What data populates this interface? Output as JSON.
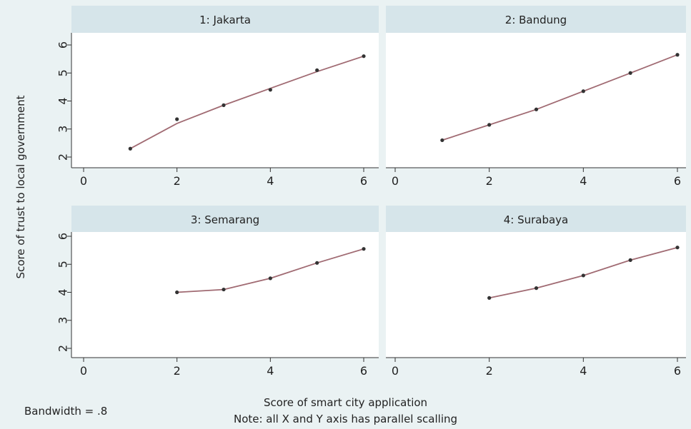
{
  "chart_data": {
    "type": "line",
    "ylabel": "Score of trust to local government",
    "xlabel": "Score of smart city application",
    "note": "Note: all X and Y axis has parallel scalling",
    "bandwidth_label": "Bandwidth = .8",
    "xlim": [
      0,
      6
    ],
    "ylim": [
      1.7,
      6.3
    ],
    "xticks": [
      0,
      2,
      4,
      6
    ],
    "yticks": [
      2,
      3,
      4,
      5,
      6
    ],
    "colors": {
      "line": "#a06a72",
      "point": "#333333",
      "header": "#d6e5ea",
      "panel": "#ffffff",
      "background": "#eaf2f3"
    },
    "panels": [
      {
        "title": "1: Jakarta",
        "points": [
          [
            1,
            2.3
          ],
          [
            2,
            3.35
          ],
          [
            3,
            3.85
          ],
          [
            4,
            4.4
          ],
          [
            5,
            5.1
          ],
          [
            6,
            5.6
          ]
        ],
        "line": [
          [
            1,
            2.3
          ],
          [
            2,
            3.2
          ],
          [
            3,
            3.85
          ],
          [
            4,
            4.45
          ],
          [
            5,
            5.05
          ],
          [
            6,
            5.6
          ]
        ]
      },
      {
        "title": "2: Bandung",
        "points": [
          [
            1,
            2.6
          ],
          [
            2,
            3.15
          ],
          [
            3,
            3.7
          ],
          [
            4,
            4.35
          ],
          [
            5,
            5.0
          ],
          [
            6,
            5.65
          ]
        ],
        "line": [
          [
            1,
            2.6
          ],
          [
            2,
            3.15
          ],
          [
            3,
            3.7
          ],
          [
            4,
            4.35
          ],
          [
            5,
            5.0
          ],
          [
            6,
            5.65
          ]
        ]
      },
      {
        "title": "3: Semarang",
        "points": [
          [
            2,
            4.0
          ],
          [
            3,
            4.1
          ],
          [
            4,
            4.5
          ],
          [
            5,
            5.05
          ],
          [
            6,
            5.55
          ]
        ],
        "line": [
          [
            2,
            4.0
          ],
          [
            3,
            4.1
          ],
          [
            4,
            4.5
          ],
          [
            5,
            5.05
          ],
          [
            6,
            5.55
          ]
        ]
      },
      {
        "title": "4: Surabaya",
        "points": [
          [
            2,
            3.8
          ],
          [
            3,
            4.15
          ],
          [
            4,
            4.6
          ],
          [
            5,
            5.15
          ],
          [
            6,
            5.6
          ]
        ],
        "line": [
          [
            2,
            3.8
          ],
          [
            3,
            4.15
          ],
          [
            4,
            4.6
          ],
          [
            5,
            5.15
          ],
          [
            6,
            5.6
          ]
        ]
      }
    ]
  }
}
